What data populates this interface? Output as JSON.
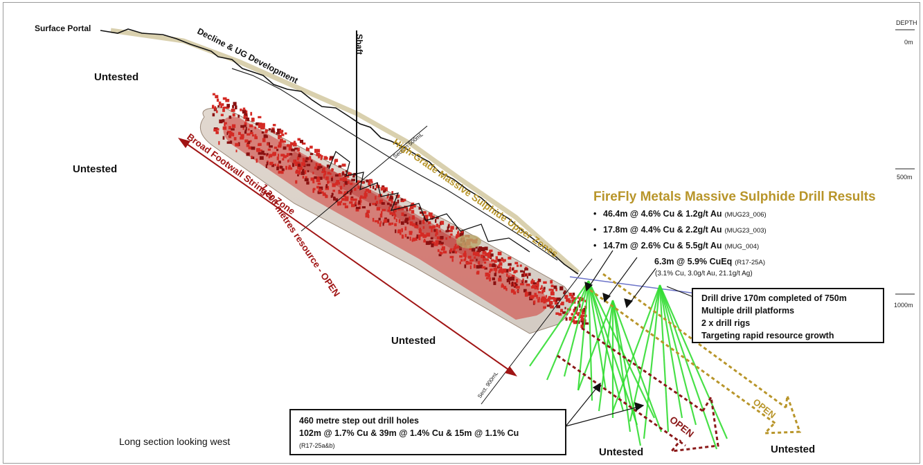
{
  "labels": {
    "surface_portal": "Surface Portal",
    "decline": "Decline & UG Development",
    "shaft": "Shaft",
    "section_500": "Section 500mL",
    "section_900": "Sect. 900mL",
    "high_grade": "High-Grade Massive Sulphide Upper Zones",
    "footwall": "Broad Footwall Stringer Zone",
    "resource": "1,200 metres resource - OPEN",
    "open1": "OPEN",
    "open2": "OPEN",
    "long_section": "Long section looking west"
  },
  "untested": [
    "Untested",
    "Untested",
    "Untested",
    "Untested",
    "Untested"
  ],
  "depth": {
    "header": "DEPTH",
    "ticks": [
      "0m",
      "500m",
      "1000m"
    ]
  },
  "results": {
    "title": "FireFly Metals Massive Sulphide Drill Results",
    "items": [
      {
        "main": "46.4m @ 4.6% Cu & 1.2g/t Au",
        "code": "(MUG23_006)"
      },
      {
        "main": "17.8m @ 4.4% Cu & 2.2g/t Au",
        "code": "(MUG23_003)"
      },
      {
        "main": "14.7m @ 2.6% Cu & 5.5g/t Au",
        "code": "(MUG_004)"
      }
    ],
    "extra_main": "6.3m @ 5.9% CuEq",
    "extra_code": "(R17-25A)",
    "extra_sub": "(3.1% Cu, 3.0g/t Au, 21.1g/t Ag)"
  },
  "drill_box": {
    "lines": [
      "Drill drive 170m completed of 750m",
      "Multiple drill platforms",
      "2 x drill rigs",
      "Targeting rapid resource growth"
    ]
  },
  "stepout_box": {
    "line1": "460 metre step out drill holes",
    "line2": "102m @ 1.7% Cu & 39m @ 1.4% Cu & 15m @ 1.1% Cu",
    "line3": "(R17-25a&b)"
  },
  "colors": {
    "gold": "#b8952a",
    "dark_red": "#a01414",
    "drill_green": "#33dd33",
    "ore_red": "#cc2b2b"
  }
}
